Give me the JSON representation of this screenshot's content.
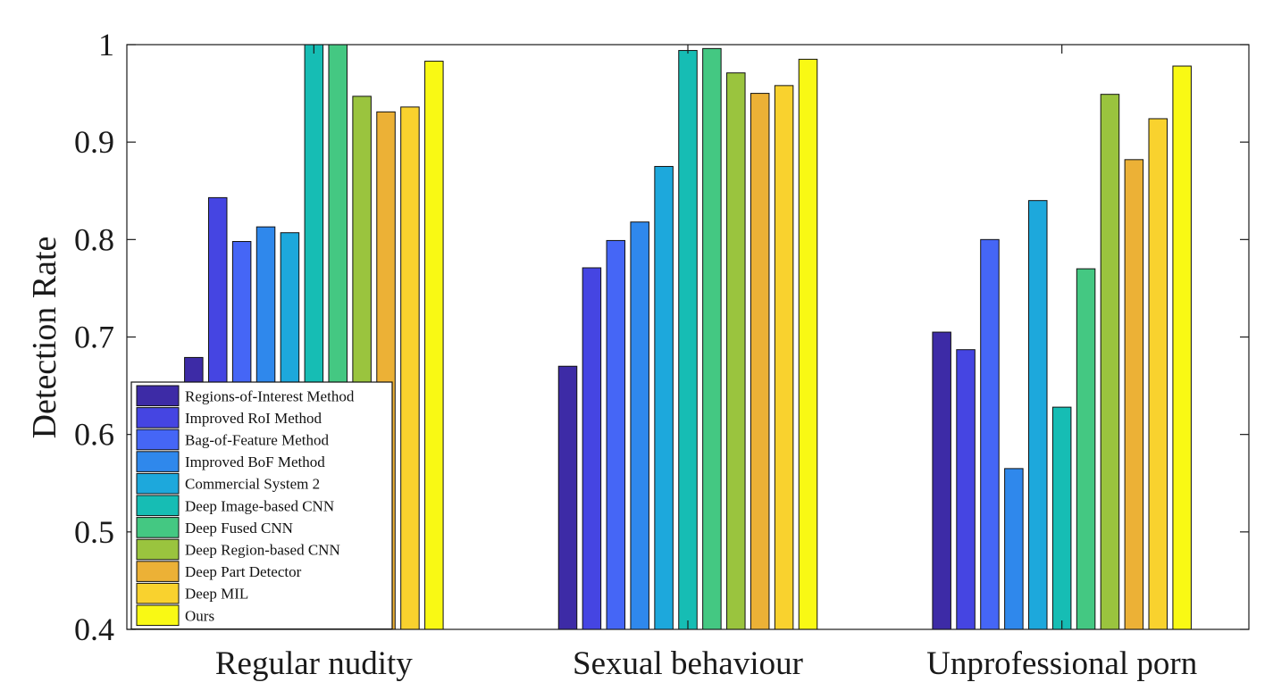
{
  "chart_data": {
    "type": "bar",
    "title": "",
    "xlabel": "",
    "ylabel": "Detection Rate",
    "ylim": [
      0.4,
      1.0
    ],
    "yticks": [
      0.4,
      0.5,
      0.6,
      0.7,
      0.8,
      0.9,
      1.0
    ],
    "ytick_labels": [
      "0.4",
      "0.5",
      "0.6",
      "0.7",
      "0.8",
      "0.9",
      "1"
    ],
    "grid": false,
    "legend_position": "bottom-left",
    "categories": [
      "Regular nudity",
      "Sexual behaviour",
      "Unprofessional porn"
    ],
    "series": [
      {
        "name": "Regions-of-Interest Method",
        "color": "#3d2ba6",
        "values": [
          0.679,
          0.67,
          0.705
        ]
      },
      {
        "name": "Improved RoI Method",
        "color": "#4545e2",
        "values": [
          0.843,
          0.771,
          0.687
        ]
      },
      {
        "name": "Bag-of-Feature Method",
        "color": "#4566f6",
        "values": [
          0.798,
          0.799,
          0.8
        ]
      },
      {
        "name": "Improved BoF Method",
        "color": "#2f88ec",
        "values": [
          0.813,
          0.818,
          0.565
        ]
      },
      {
        "name": "Commercial System 2",
        "color": "#1da8dc",
        "values": [
          0.807,
          0.875,
          0.84
        ]
      },
      {
        "name": "Deep Image-based CNN",
        "color": "#16bdb4",
        "values": [
          1.0,
          0.994,
          0.628
        ]
      },
      {
        "name": "Deep Fused CNN",
        "color": "#44c882",
        "values": [
          1.0,
          0.996,
          0.77
        ]
      },
      {
        "name": "Deep Region-based CNN",
        "color": "#9ac43e",
        "values": [
          0.947,
          0.971,
          0.949
        ]
      },
      {
        "name": "Deep Part Detector",
        "color": "#ecb136",
        "values": [
          0.931,
          0.95,
          0.882
        ]
      },
      {
        "name": "Deep MIL",
        "color": "#f9d22e",
        "values": [
          0.936,
          0.958,
          0.924
        ]
      },
      {
        "name": "Ours",
        "color": "#f9f914",
        "values": [
          0.983,
          0.985,
          0.978
        ]
      }
    ]
  }
}
